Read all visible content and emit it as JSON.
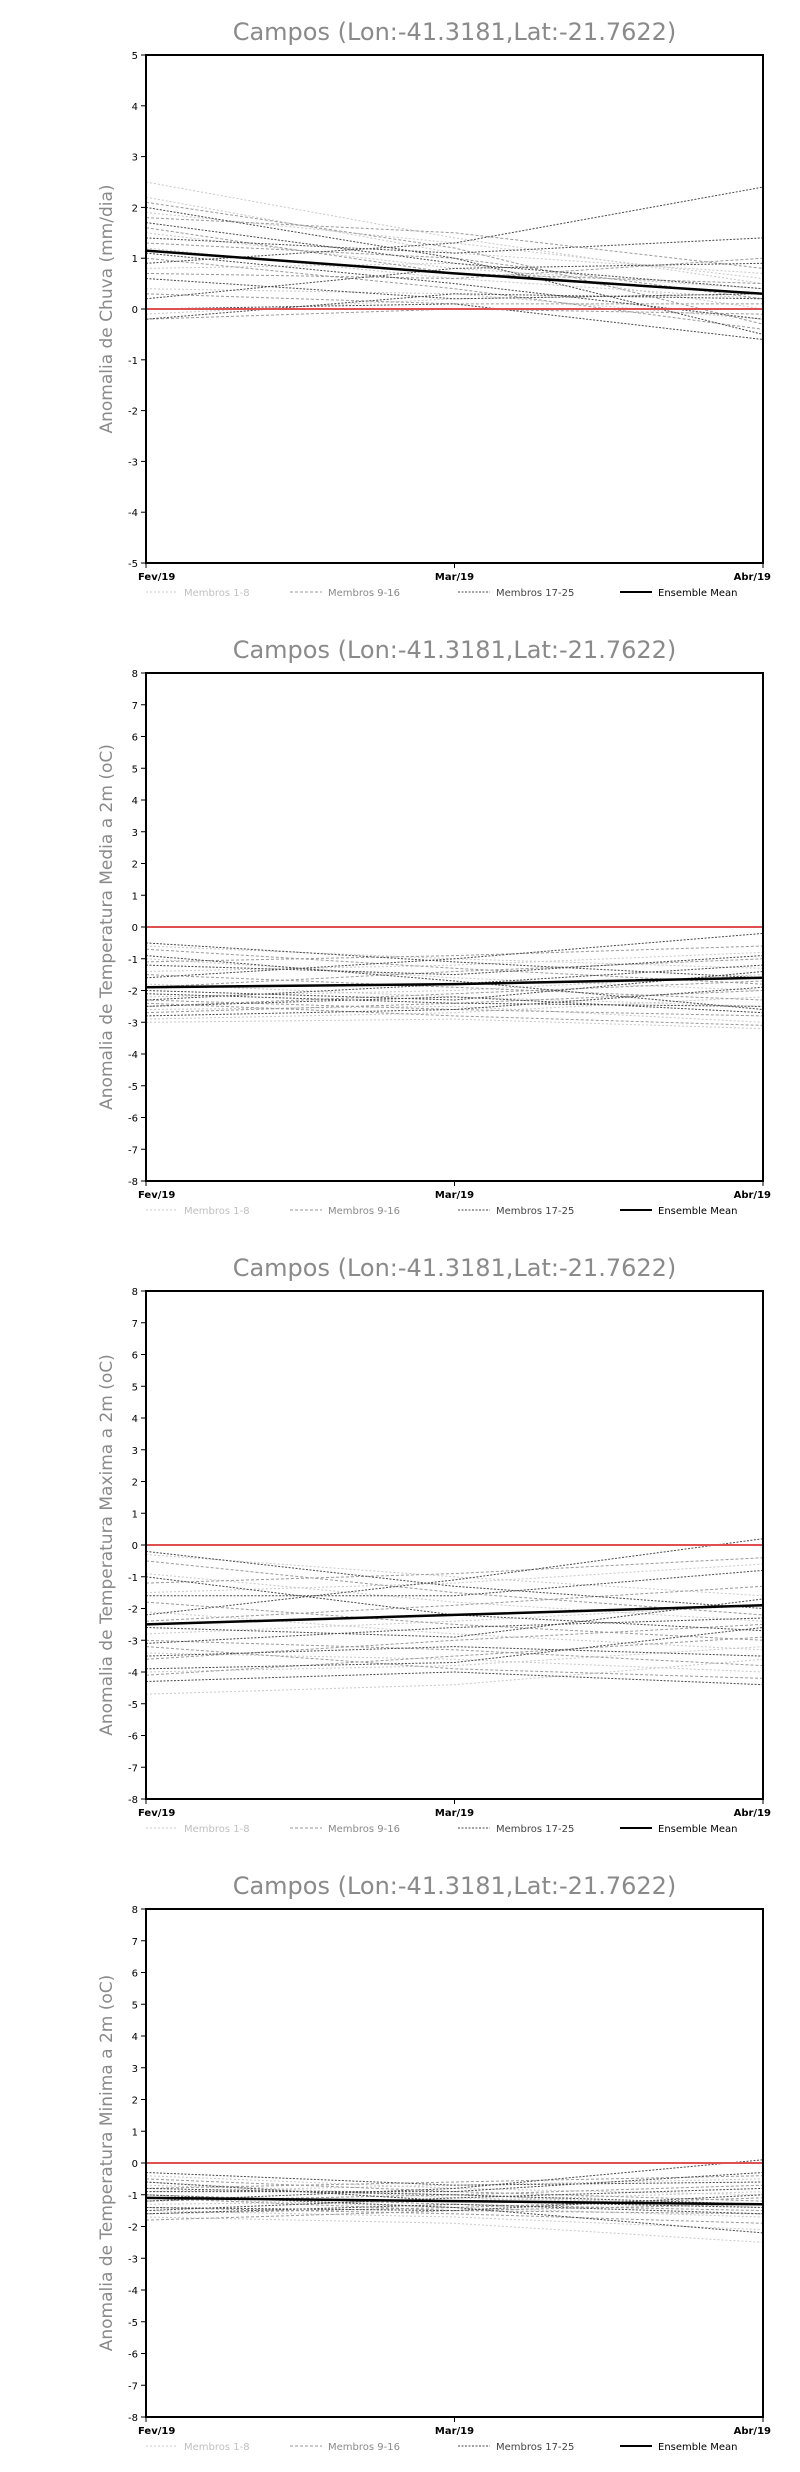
{
  "chart_data": [
    {
      "type": "line",
      "title": "Campos (Lon:-41.3181,Lat:-21.7622)",
      "xlabel": "",
      "ylabel": "Anomalia de Chuva (mm/dia)",
      "categories": [
        "Fev/19",
        "Mar/19",
        "Abr/19"
      ],
      "ylim": [
        -5,
        5
      ],
      "yticks": [
        -5,
        -4,
        -3,
        -2,
        -1,
        0,
        1,
        2,
        3,
        4,
        5
      ],
      "reference_line": {
        "value": 0,
        "color": "#e05050"
      },
      "legend": {
        "position": "bottom",
        "entries": [
          "Membros 1-8",
          "Membros 9-16",
          "Membros 17-25",
          "Ensemble Mean"
        ]
      },
      "series": [
        {
          "group": 0,
          "values": [
            2.5,
            1.4,
            0.5
          ]
        },
        {
          "group": 0,
          "values": [
            2.2,
            1.1,
            0.7
          ]
        },
        {
          "group": 0,
          "values": [
            1.9,
            1.3,
            0.6
          ]
        },
        {
          "group": 0,
          "values": [
            1.5,
            0.8,
            0.4
          ]
        },
        {
          "group": 0,
          "values": [
            1.2,
            0.6,
            0.2
          ]
        },
        {
          "group": 0,
          "values": [
            0.8,
            0.9,
            0.0
          ]
        },
        {
          "group": 0,
          "values": [
            0.4,
            0.3,
            -0.2
          ]
        },
        {
          "group": 0,
          "values": [
            -0.1,
            0.2,
            0.3
          ]
        },
        {
          "group": 1,
          "values": [
            2.1,
            1.2,
            -0.3
          ]
        },
        {
          "group": 1,
          "values": [
            1.8,
            1.5,
            0.8
          ]
        },
        {
          "group": 1,
          "values": [
            1.6,
            0.7,
            0.5
          ]
        },
        {
          "group": 1,
          "values": [
            1.3,
            1.0,
            0.2
          ]
        },
        {
          "group": 1,
          "values": [
            1.0,
            0.4,
            -0.4
          ]
        },
        {
          "group": 1,
          "values": [
            0.7,
            0.6,
            1.0
          ]
        },
        {
          "group": 1,
          "values": [
            0.3,
            0.1,
            0.1
          ]
        },
        {
          "group": 1,
          "values": [
            -0.2,
            0.0,
            -0.1
          ]
        },
        {
          "group": 2,
          "values": [
            2.0,
            1.0,
            -0.5
          ]
        },
        {
          "group": 2,
          "values": [
            1.7,
            0.9,
            0.4
          ]
        },
        {
          "group": 2,
          "values": [
            1.4,
            1.1,
            1.4
          ]
        },
        {
          "group": 2,
          "values": [
            1.1,
            0.5,
            -0.2
          ]
        },
        {
          "group": 2,
          "values": [
            0.9,
            1.3,
            2.4
          ]
        },
        {
          "group": 2,
          "values": [
            0.6,
            0.2,
            0.3
          ]
        },
        {
          "group": 2,
          "values": [
            0.2,
            0.8,
            0.9
          ]
        },
        {
          "group": 2,
          "values": [
            0.0,
            0.1,
            -0.6
          ]
        },
        {
          "group": 2,
          "values": [
            -0.2,
            0.3,
            0.2
          ]
        },
        {
          "group": 3,
          "values": [
            1.15,
            0.7,
            0.3
          ]
        }
      ]
    },
    {
      "type": "line",
      "title": "Campos (Lon:-41.3181,Lat:-21.7622)",
      "xlabel": "",
      "ylabel": "Anomalia de Temperatura Media a 2m (oC)",
      "categories": [
        "Fev/19",
        "Mar/19",
        "Abr/19"
      ],
      "ylim": [
        -8,
        8
      ],
      "yticks": [
        -8,
        -7,
        -6,
        -5,
        -4,
        -3,
        -2,
        -1,
        0,
        1,
        2,
        3,
        4,
        5,
        6,
        7,
        8
      ],
      "reference_line": {
        "value": 0,
        "color": "#e05050"
      },
      "legend": {
        "position": "bottom",
        "entries": [
          "Membros 1-8",
          "Membros 9-16",
          "Membros 17-25",
          "Ensemble Mean"
        ]
      },
      "series": [
        {
          "group": 0,
          "values": [
            -0.6,
            -1.0,
            -1.3
          ]
        },
        {
          "group": 0,
          "values": [
            -1.0,
            -1.6,
            -2.0
          ]
        },
        {
          "group": 0,
          "values": [
            -1.4,
            -1.2,
            -0.8
          ]
        },
        {
          "group": 0,
          "values": [
            -1.8,
            -2.2,
            -2.5
          ]
        },
        {
          "group": 0,
          "values": [
            -2.2,
            -2.0,
            -1.5
          ]
        },
        {
          "group": 0,
          "values": [
            -2.6,
            -2.5,
            -3.0
          ]
        },
        {
          "group": 0,
          "values": [
            -2.9,
            -2.7,
            -2.2
          ]
        },
        {
          "group": 0,
          "values": [
            -3.0,
            -2.9,
            -3.2
          ]
        },
        {
          "group": 1,
          "values": [
            -0.7,
            -1.3,
            -1.8
          ]
        },
        {
          "group": 1,
          "values": [
            -1.1,
            -0.9,
            -0.6
          ]
        },
        {
          "group": 1,
          "values": [
            -1.5,
            -1.9,
            -2.3
          ]
        },
        {
          "group": 1,
          "values": [
            -1.9,
            -1.4,
            -1.0
          ]
        },
        {
          "group": 1,
          "values": [
            -2.3,
            -2.6,
            -2.8
          ]
        },
        {
          "group": 1,
          "values": [
            -2.5,
            -2.1,
            -1.7
          ]
        },
        {
          "group": 1,
          "values": [
            -2.7,
            -2.4,
            -2.0
          ]
        },
        {
          "group": 1,
          "values": [
            -2.4,
            -2.8,
            -3.1
          ]
        },
        {
          "group": 2,
          "values": [
            -0.5,
            -1.1,
            -1.6
          ]
        },
        {
          "group": 2,
          "values": [
            -0.9,
            -1.7,
            -2.6
          ]
        },
        {
          "group": 2,
          "values": [
            -1.2,
            -1.5,
            -0.9
          ]
        },
        {
          "group": 2,
          "values": [
            -1.6,
            -1.0,
            -0.2
          ]
        },
        {
          "group": 2,
          "values": [
            -2.0,
            -2.3,
            -1.4
          ]
        },
        {
          "group": 2,
          "values": [
            -2.3,
            -1.8,
            -1.2
          ]
        },
        {
          "group": 2,
          "values": [
            -2.5,
            -2.2,
            -2.7
          ]
        },
        {
          "group": 2,
          "values": [
            -2.8,
            -2.6,
            -1.9
          ]
        },
        {
          "group": 2,
          "values": [
            -2.1,
            -2.4,
            -2.5
          ]
        },
        {
          "group": 3,
          "values": [
            -1.9,
            -1.8,
            -1.6
          ]
        }
      ]
    },
    {
      "type": "line",
      "title": "Campos (Lon:-41.3181,Lat:-21.7622)",
      "xlabel": "",
      "ylabel": "Anomalia de Temperatura Maxima a 2m (oC)",
      "categories": [
        "Fev/19",
        "Mar/19",
        "Abr/19"
      ],
      "ylim": [
        -8,
        8
      ],
      "yticks": [
        -8,
        -7,
        -6,
        -5,
        -4,
        -3,
        -2,
        -1,
        0,
        1,
        2,
        3,
        4,
        5,
        6,
        7,
        8
      ],
      "reference_line": {
        "value": 0,
        "color": "#e05050"
      },
      "legend": {
        "position": "bottom",
        "entries": [
          "Membros 1-8",
          "Membros 9-16",
          "Membros 17-25",
          "Ensemble Mean"
        ]
      },
      "series": [
        {
          "group": 0,
          "values": [
            -0.3,
            -1.0,
            -1.6
          ]
        },
        {
          "group": 0,
          "values": [
            -0.9,
            -1.8,
            -2.4
          ]
        },
        {
          "group": 0,
          "values": [
            -1.5,
            -1.2,
            -0.6
          ]
        },
        {
          "group": 0,
          "values": [
            -2.1,
            -2.8,
            -3.3
          ]
        },
        {
          "group": 0,
          "values": [
            -2.8,
            -2.4,
            -1.9
          ]
        },
        {
          "group": 0,
          "values": [
            -3.4,
            -3.6,
            -4.0
          ]
        },
        {
          "group": 0,
          "values": [
            -4.0,
            -3.8,
            -3.2
          ]
        },
        {
          "group": 0,
          "values": [
            -4.7,
            -4.4,
            -3.6
          ]
        },
        {
          "group": 1,
          "values": [
            -0.5,
            -1.5,
            -2.2
          ]
        },
        {
          "group": 1,
          "values": [
            -1.2,
            -0.9,
            -0.4
          ]
        },
        {
          "group": 1,
          "values": [
            -1.8,
            -2.5,
            -3.0
          ]
        },
        {
          "group": 1,
          "values": [
            -2.4,
            -1.9,
            -1.3
          ]
        },
        {
          "group": 1,
          "values": [
            -3.0,
            -3.3,
            -3.8
          ]
        },
        {
          "group": 1,
          "values": [
            -3.6,
            -3.0,
            -2.5
          ]
        },
        {
          "group": 1,
          "values": [
            -4.1,
            -3.5,
            -2.9
          ]
        },
        {
          "group": 1,
          "values": [
            -3.2,
            -3.9,
            -4.2
          ]
        },
        {
          "group": 2,
          "values": [
            -0.2,
            -1.3,
            -2.0
          ]
        },
        {
          "group": 2,
          "values": [
            -1.0,
            -2.2,
            -2.7
          ]
        },
        {
          "group": 2,
          "values": [
            -1.6,
            -1.6,
            -0.8
          ]
        },
        {
          "group": 2,
          "values": [
            -2.2,
            -1.1,
            0.2
          ]
        },
        {
          "group": 2,
          "values": [
            -2.6,
            -2.9,
            -1.7
          ]
        },
        {
          "group": 2,
          "values": [
            -3.1,
            -2.6,
            -2.3
          ]
        },
        {
          "group": 2,
          "values": [
            -3.5,
            -3.2,
            -3.5
          ]
        },
        {
          "group": 2,
          "values": [
            -3.9,
            -3.7,
            -2.6
          ]
        },
        {
          "group": 2,
          "values": [
            -4.3,
            -4.0,
            -4.4
          ]
        },
        {
          "group": 3,
          "values": [
            -2.5,
            -2.2,
            -1.9
          ]
        }
      ]
    },
    {
      "type": "line",
      "title": "Campos (Lon:-41.3181,Lat:-21.7622)",
      "xlabel": "",
      "ylabel": "Anomalia de Temperatura Minima a 2m (oC)",
      "categories": [
        "Fev/19",
        "Mar/19",
        "Abr/19"
      ],
      "ylim": [
        -8,
        8
      ],
      "yticks": [
        -8,
        -7,
        -6,
        -5,
        -4,
        -3,
        -2,
        -1,
        0,
        1,
        2,
        3,
        4,
        5,
        6,
        7,
        8
      ],
      "reference_line": {
        "value": 0,
        "color": "#e05050"
      },
      "legend": {
        "position": "bottom",
        "entries": [
          "Membros 1-8",
          "Membros 9-16",
          "Membros 17-25",
          "Ensemble Mean"
        ]
      },
      "series": [
        {
          "group": 0,
          "values": [
            -0.4,
            -0.8,
            -1.0
          ]
        },
        {
          "group": 0,
          "values": [
            -0.7,
            -1.0,
            -1.4
          ]
        },
        {
          "group": 0,
          "values": [
            -0.9,
            -0.7,
            -0.5
          ]
        },
        {
          "group": 0,
          "values": [
            -1.1,
            -1.4,
            -1.7
          ]
        },
        {
          "group": 0,
          "values": [
            -1.3,
            -1.2,
            -0.9
          ]
        },
        {
          "group": 0,
          "values": [
            -1.5,
            -1.7,
            -2.1
          ]
        },
        {
          "group": 0,
          "values": [
            -1.7,
            -1.9,
            -2.5
          ]
        },
        {
          "group": 0,
          "values": [
            -0.6,
            -1.1,
            -1.3
          ]
        },
        {
          "group": 1,
          "values": [
            -0.5,
            -0.9,
            -1.2
          ]
        },
        {
          "group": 1,
          "values": [
            -0.8,
            -0.6,
            -0.4
          ]
        },
        {
          "group": 1,
          "values": [
            -1.0,
            -1.3,
            -1.5
          ]
        },
        {
          "group": 1,
          "values": [
            -1.2,
            -1.0,
            -0.7
          ]
        },
        {
          "group": 1,
          "values": [
            -1.4,
            -1.6,
            -1.9
          ]
        },
        {
          "group": 1,
          "values": [
            -1.6,
            -1.4,
            -1.1
          ]
        },
        {
          "group": 1,
          "values": [
            -1.8,
            -1.5,
            -1.3
          ]
        },
        {
          "group": 1,
          "values": [
            -1.1,
            -1.5,
            -1.6
          ]
        },
        {
          "group": 2,
          "values": [
            -0.3,
            -0.7,
            -0.6
          ]
        },
        {
          "group": 2,
          "values": [
            -0.6,
            -1.2,
            -1.4
          ]
        },
        {
          "group": 2,
          "values": [
            -0.9,
            -0.9,
            -0.3
          ]
        },
        {
          "group": 2,
          "values": [
            -1.2,
            -0.8,
            0.1
          ]
        },
        {
          "group": 2,
          "values": [
            -1.4,
            -1.5,
            -1.0
          ]
        },
        {
          "group": 2,
          "values": [
            -1.6,
            -1.3,
            -1.6
          ]
        },
        {
          "group": 2,
          "values": [
            -1.0,
            -1.4,
            -2.2
          ]
        },
        {
          "group": 2,
          "values": [
            -1.5,
            -1.1,
            -0.8
          ]
        },
        {
          "group": 2,
          "values": [
            -0.8,
            -1.0,
            -1.3
          ]
        },
        {
          "group": 3,
          "values": [
            -1.1,
            -1.2,
            -1.3
          ]
        }
      ]
    }
  ]
}
